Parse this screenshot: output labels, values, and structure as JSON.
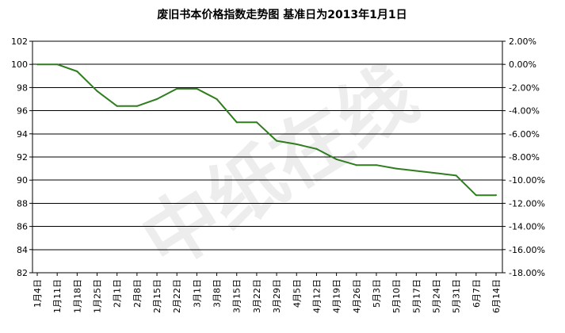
{
  "chart_data": {
    "type": "line",
    "title": "废旧书本价格指数走势图 基准日为2013年1月1日",
    "xlabel": "",
    "ylabel": "",
    "categories": [
      "1月4日",
      "1月11日",
      "1月18日",
      "1月25日",
      "2月1日",
      "2月8日",
      "2月15日",
      "2月22日",
      "3月1日",
      "3月8日",
      "3月15日",
      "3月22日",
      "3月29日",
      "4月5日",
      "4月12日",
      "4月19日",
      "4月26日",
      "5月3日",
      "5月10日",
      "5月17日",
      "5月24日",
      "5月31日",
      "6月7日",
      "6月14日"
    ],
    "series": [
      {
        "values": [
          100,
          100,
          99.4,
          97.7,
          96.4,
          96.4,
          97.0,
          97.9,
          97.9,
          97.0,
          95.0,
          95.0,
          93.4,
          93.1,
          92.7,
          91.8,
          91.3,
          91.3,
          91.0,
          90.8,
          90.6,
          90.4,
          88.7,
          88.7
        ]
      }
    ],
    "ylim": [
      82,
      102
    ],
    "yticks": [
      "82",
      "84",
      "86",
      "88",
      "90",
      "92",
      "94",
      "96",
      "98",
      "100",
      "102"
    ],
    "y2lim": [
      -18,
      2
    ],
    "y2ticks": [
      "-18.00%",
      "-16.00%",
      "-14.00%",
      "-12.00%",
      "-10.00%",
      "-8.00%",
      "-6.00%",
      "-4.00%",
      "-2.00%",
      "0.00%",
      "2.00%"
    ],
    "grid": true,
    "legend": "none",
    "line_color": "#2e7d1e",
    "watermark": "中纸在线"
  }
}
